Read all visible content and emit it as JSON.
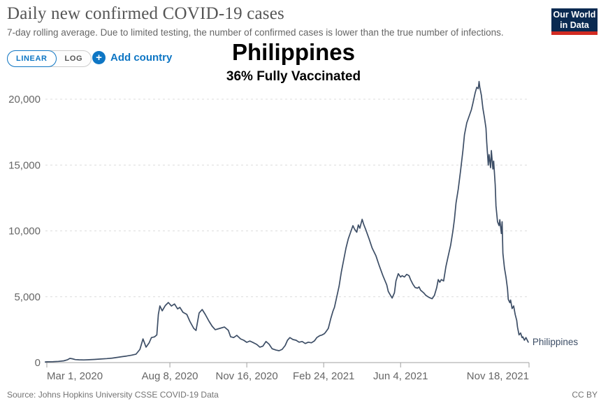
{
  "header": {
    "title": "Daily new confirmed COVID-19 cases",
    "subtitle": "7-day rolling average. Due to limited testing, the number of confirmed cases is lower than the true number of infections."
  },
  "controls": {
    "linear_label": "LINEAR",
    "log_label": "LOG",
    "plus_icon": "+",
    "add_country_label": "Add country"
  },
  "overlay": {
    "country": "Philippines",
    "vaccination_status": "36% Fully Vaccinated"
  },
  "logo": {
    "line1": "Our World",
    "line2": "in Data"
  },
  "footer": {
    "source": "Source: Johns Hopkins University CSSE COVID-19 Data",
    "license": "CC BY"
  },
  "colors": {
    "accent_blue": "#0e76c4",
    "line": "#3d4e66",
    "logo_navy": "#0a2a51",
    "logo_red": "#d22b22",
    "grid": "#dcdcdc",
    "axis_text": "#666666"
  },
  "chart_data": {
    "type": "line",
    "title": "Daily new confirmed COVID-19 cases",
    "xlabel": "",
    "ylabel": "",
    "grid": "dashed-horizontal",
    "x_axis": {
      "start_date": "2020-03-01",
      "end_date": "2021-11-18",
      "unit": "days since 2020-03-01",
      "ticks": [
        {
          "label": "Mar 1, 2020",
          "day": 0,
          "align": "start"
        },
        {
          "label": "Aug 8, 2020",
          "day": 160,
          "align": "middle"
        },
        {
          "label": "Nov 16, 2020",
          "day": 260,
          "align": "middle"
        },
        {
          "label": "Feb 24, 2021",
          "day": 360,
          "align": "middle"
        },
        {
          "label": "Jun 4, 2021",
          "day": 460,
          "align": "middle"
        },
        {
          "label": "Nov 18, 2021",
          "day": 627,
          "align": "end"
        }
      ]
    },
    "y_axis": {
      "min": 0,
      "max": 22000,
      "ticks": [
        0,
        5000,
        10000,
        15000,
        20000
      ]
    },
    "series": [
      {
        "name": "Philippines",
        "end_label": "Philippines",
        "points": [
          [
            -2,
            50
          ],
          [
            0,
            60
          ],
          [
            8,
            70
          ],
          [
            15,
            90
          ],
          [
            22,
            130
          ],
          [
            27,
            220
          ],
          [
            30,
            320
          ],
          [
            33,
            290
          ],
          [
            37,
            230
          ],
          [
            42,
            210
          ],
          [
            48,
            200
          ],
          [
            55,
            220
          ],
          [
            62,
            240
          ],
          [
            70,
            270
          ],
          [
            78,
            300
          ],
          [
            85,
            340
          ],
          [
            92,
            400
          ],
          [
            98,
            450
          ],
          [
            104,
            500
          ],
          [
            110,
            560
          ],
          [
            116,
            640
          ],
          [
            121,
            1000
          ],
          [
            125,
            1800
          ],
          [
            129,
            1170
          ],
          [
            133,
            1500
          ],
          [
            136,
            1900
          ],
          [
            140,
            1950
          ],
          [
            143,
            2100
          ],
          [
            145,
            3660
          ],
          [
            147,
            4300
          ],
          [
            150,
            3930
          ],
          [
            154,
            4330
          ],
          [
            158,
            4560
          ],
          [
            162,
            4290
          ],
          [
            166,
            4450
          ],
          [
            170,
            4080
          ],
          [
            173,
            4190
          ],
          [
            177,
            3820
          ],
          [
            182,
            3660
          ],
          [
            186,
            3130
          ],
          [
            191,
            2600
          ],
          [
            194,
            2440
          ],
          [
            198,
            3760
          ],
          [
            202,
            4030
          ],
          [
            206,
            3660
          ],
          [
            211,
            3130
          ],
          [
            215,
            2760
          ],
          [
            219,
            2500
          ],
          [
            225,
            2600
          ],
          [
            231,
            2700
          ],
          [
            236,
            2450
          ],
          [
            239,
            1960
          ],
          [
            243,
            1900
          ],
          [
            247,
            2070
          ],
          [
            252,
            1800
          ],
          [
            256,
            1700
          ],
          [
            260,
            1540
          ],
          [
            264,
            1640
          ],
          [
            269,
            1500
          ],
          [
            273,
            1380
          ],
          [
            277,
            1170
          ],
          [
            281,
            1250
          ],
          [
            285,
            1600
          ],
          [
            289,
            1400
          ],
          [
            293,
            1050
          ],
          [
            298,
            950
          ],
          [
            302,
            900
          ],
          [
            306,
            1000
          ],
          [
            310,
            1300
          ],
          [
            313,
            1700
          ],
          [
            316,
            1900
          ],
          [
            320,
            1750
          ],
          [
            324,
            1700
          ],
          [
            328,
            1550
          ],
          [
            332,
            1600
          ],
          [
            336,
            1450
          ],
          [
            340,
            1550
          ],
          [
            344,
            1500
          ],
          [
            348,
            1650
          ],
          [
            351,
            1900
          ],
          [
            355,
            2050
          ],
          [
            358,
            2100
          ],
          [
            361,
            2200
          ],
          [
            363,
            2350
          ],
          [
            366,
            2600
          ],
          [
            369,
            3300
          ],
          [
            372,
            3900
          ],
          [
            374,
            4200
          ],
          [
            377,
            5000
          ],
          [
            380,
            5800
          ],
          [
            383,
            6900
          ],
          [
            386,
            7800
          ],
          [
            389,
            8700
          ],
          [
            392,
            9400
          ],
          [
            395,
            9900
          ],
          [
            398,
            10400
          ],
          [
            400,
            10150
          ],
          [
            403,
            9900
          ],
          [
            405,
            10450
          ],
          [
            407,
            10200
          ],
          [
            410,
            10880
          ],
          [
            412,
            10500
          ],
          [
            415,
            10050
          ],
          [
            419,
            9400
          ],
          [
            423,
            8700
          ],
          [
            428,
            8100
          ],
          [
            432,
            7400
          ],
          [
            437,
            6600
          ],
          [
            442,
            5900
          ],
          [
            444,
            5400
          ],
          [
            447,
            5100
          ],
          [
            449,
            4900
          ],
          [
            452,
            5300
          ],
          [
            454,
            6200
          ],
          [
            457,
            6750
          ],
          [
            460,
            6500
          ],
          [
            462,
            6600
          ],
          [
            465,
            6500
          ],
          [
            468,
            6700
          ],
          [
            471,
            6600
          ],
          [
            473,
            6300
          ],
          [
            476,
            5950
          ],
          [
            479,
            5700
          ],
          [
            482,
            5650
          ],
          [
            484,
            5750
          ],
          [
            486,
            5500
          ],
          [
            490,
            5300
          ],
          [
            493,
            5100
          ],
          [
            497,
            4950
          ],
          [
            501,
            4850
          ],
          [
            504,
            5100
          ],
          [
            507,
            5700
          ],
          [
            509,
            6300
          ],
          [
            511,
            6100
          ],
          [
            513,
            6300
          ],
          [
            516,
            6200
          ],
          [
            519,
            7300
          ],
          [
            522,
            8100
          ],
          [
            525,
            8900
          ],
          [
            528,
            10000
          ],
          [
            530,
            10900
          ],
          [
            532,
            12100
          ],
          [
            535,
            13200
          ],
          [
            538,
            14600
          ],
          [
            541,
            16100
          ],
          [
            543,
            17300
          ],
          [
            546,
            18200
          ],
          [
            549,
            18700
          ],
          [
            552,
            19200
          ],
          [
            554,
            19700
          ],
          [
            557,
            20500
          ],
          [
            559,
            20900
          ],
          [
            561,
            20800
          ],
          [
            562,
            21350
          ],
          [
            563,
            20900
          ],
          [
            565,
            20300
          ],
          [
            567,
            19300
          ],
          [
            569,
            18600
          ],
          [
            571,
            17800
          ],
          [
            572,
            16700
          ],
          [
            574,
            15000
          ],
          [
            575,
            15800
          ],
          [
            577,
            14800
          ],
          [
            578,
            16100
          ],
          [
            580,
            14700
          ],
          [
            581,
            15300
          ],
          [
            583,
            13500
          ],
          [
            584,
            11900
          ],
          [
            586,
            10700
          ],
          [
            588,
            10400
          ],
          [
            589,
            10850
          ],
          [
            591,
            9800
          ],
          [
            592,
            10700
          ],
          [
            593,
            8300
          ],
          [
            595,
            7200
          ],
          [
            597,
            6500
          ],
          [
            599,
            5600
          ],
          [
            600,
            4800
          ],
          [
            602,
            4550
          ],
          [
            603,
            4750
          ],
          [
            605,
            4100
          ],
          [
            607,
            4300
          ],
          [
            609,
            3650
          ],
          [
            611,
            3200
          ],
          [
            612,
            2700
          ],
          [
            614,
            2100
          ],
          [
            616,
            2250
          ],
          [
            618,
            1900
          ],
          [
            619,
            1950
          ],
          [
            621,
            1700
          ],
          [
            623,
            1900
          ],
          [
            626,
            1550
          ]
        ]
      }
    ]
  }
}
